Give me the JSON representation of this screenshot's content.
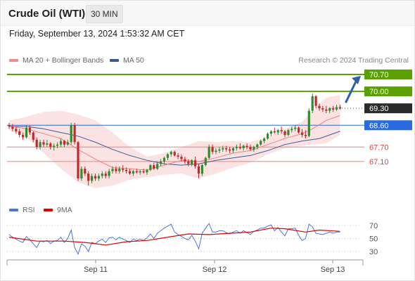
{
  "header": {
    "instrument": "Crude Oil (WTI)",
    "interval": "30 MIN"
  },
  "timestamp": "Friday, September 13, 2024 1:53:32 AM CET",
  "credit": "Research © 2024 Trading Central",
  "legend": {
    "price": [
      {
        "label": "MA 20 + Bollinger Bands",
        "color": "#f28b82"
      },
      {
        "label": "MA 50",
        "color": "#3b5998"
      }
    ],
    "rsi": [
      {
        "label": "RSI",
        "color": "#4a76d6"
      },
      {
        "label": "9MA",
        "color": "#e00000"
      }
    ]
  },
  "chart_data": [
    {
      "type": "candlestick",
      "ylim": [
        66.0,
        71.1
      ],
      "x_ticks": [
        "Sep 11",
        "Sep 12",
        "Sep 13"
      ],
      "levels": [
        {
          "value": 70.7,
          "label": "70.70",
          "color": "#5aa000",
          "style": "filled"
        },
        {
          "value": 70.0,
          "label": "70.00",
          "color": "#5aa000",
          "style": "filled"
        },
        {
          "value": 69.3,
          "label": "69.30",
          "color": "#2a2a2a",
          "style": "filled"
        },
        {
          "value": 68.6,
          "label": "68.60",
          "color": "#2a6ae0",
          "style": "filled"
        },
        {
          "value": 67.7,
          "label": "67.70",
          "color": "#e04040",
          "style": "text"
        },
        {
          "value": 67.1,
          "label": "67.10",
          "color": "#e04040",
          "style": "text"
        }
      ],
      "ohlc": [
        [
          68.6,
          68.7,
          68.45,
          68.55
        ],
        [
          68.55,
          68.65,
          68.35,
          68.45
        ],
        [
          68.45,
          68.55,
          68.25,
          68.35
        ],
        [
          68.35,
          68.45,
          68.1,
          68.2
        ],
        [
          68.2,
          68.3,
          68.0,
          68.1
        ],
        [
          68.1,
          68.6,
          68.05,
          68.5
        ],
        [
          68.5,
          68.6,
          68.2,
          68.3
        ],
        [
          68.3,
          68.35,
          67.9,
          68.0
        ],
        [
          68.0,
          68.1,
          67.6,
          67.7
        ],
        [
          67.7,
          68.0,
          67.6,
          67.9
        ],
        [
          67.9,
          68.0,
          67.7,
          67.8
        ],
        [
          67.8,
          68.0,
          67.7,
          67.85
        ],
        [
          67.85,
          67.9,
          67.6,
          67.7
        ],
        [
          67.7,
          67.85,
          67.55,
          67.75
        ],
        [
          67.75,
          67.9,
          67.65,
          67.8
        ],
        [
          67.8,
          68.05,
          67.7,
          67.95
        ],
        [
          67.95,
          68.0,
          67.7,
          67.8
        ],
        [
          67.8,
          68.0,
          67.75,
          67.9
        ],
        [
          67.9,
          68.7,
          67.8,
          68.6
        ],
        [
          68.6,
          68.7,
          67.8,
          67.9
        ],
        [
          67.9,
          67.95,
          66.3,
          66.4
        ],
        [
          66.4,
          66.9,
          66.3,
          66.8
        ],
        [
          66.8,
          66.9,
          66.5,
          66.6
        ],
        [
          66.6,
          66.7,
          66.1,
          66.3
        ],
        [
          66.3,
          66.6,
          66.2,
          66.5
        ],
        [
          66.5,
          66.6,
          66.3,
          66.4
        ],
        [
          66.4,
          66.6,
          66.3,
          66.5
        ],
        [
          66.5,
          66.7,
          66.4,
          66.6
        ],
        [
          66.6,
          66.7,
          66.4,
          66.5
        ],
        [
          66.5,
          66.8,
          66.4,
          66.7
        ],
        [
          66.7,
          66.9,
          66.6,
          66.8
        ],
        [
          66.8,
          66.9,
          66.6,
          66.7
        ],
        [
          66.7,
          66.9,
          66.6,
          66.8
        ],
        [
          66.8,
          66.95,
          66.65,
          66.75
        ],
        [
          66.75,
          66.85,
          66.6,
          66.7
        ],
        [
          66.7,
          66.8,
          66.55,
          66.6
        ],
        [
          66.6,
          66.75,
          66.5,
          66.7
        ],
        [
          66.7,
          66.8,
          66.6,
          66.65
        ],
        [
          66.65,
          66.75,
          66.55,
          66.7
        ],
        [
          66.7,
          66.8,
          66.6,
          66.65
        ],
        [
          66.65,
          66.8,
          66.55,
          66.75
        ],
        [
          66.75,
          67.0,
          66.7,
          66.95
        ],
        [
          66.95,
          67.05,
          66.75,
          66.8
        ],
        [
          66.8,
          67.1,
          66.75,
          67.0
        ],
        [
          67.0,
          67.2,
          66.9,
          67.1
        ],
        [
          67.1,
          67.3,
          67.0,
          67.25
        ],
        [
          67.25,
          67.45,
          67.15,
          67.4
        ],
        [
          67.4,
          67.55,
          67.3,
          67.5
        ],
        [
          67.5,
          67.55,
          67.3,
          67.35
        ],
        [
          67.35,
          67.45,
          67.2,
          67.3
        ],
        [
          67.3,
          67.4,
          67.1,
          67.2
        ],
        [
          67.2,
          67.3,
          67.0,
          67.1
        ],
        [
          67.1,
          67.2,
          66.9,
          67.0
        ],
        [
          67.0,
          67.2,
          66.9,
          67.15
        ],
        [
          67.15,
          67.3,
          66.8,
          66.9
        ],
        [
          66.9,
          67.0,
          66.4,
          66.6
        ],
        [
          66.6,
          67.0,
          66.5,
          66.95
        ],
        [
          66.95,
          67.3,
          66.9,
          67.25
        ],
        [
          67.25,
          67.8,
          67.2,
          67.7
        ],
        [
          67.7,
          67.8,
          67.4,
          67.5
        ],
        [
          67.5,
          67.65,
          67.4,
          67.55
        ],
        [
          67.55,
          67.7,
          67.45,
          67.6
        ],
        [
          67.6,
          67.75,
          67.5,
          67.65
        ],
        [
          67.65,
          67.75,
          67.5,
          67.6
        ],
        [
          67.6,
          67.7,
          67.45,
          67.55
        ],
        [
          67.55,
          67.7,
          67.45,
          67.65
        ],
        [
          67.65,
          67.8,
          67.55,
          67.7
        ],
        [
          67.7,
          67.85,
          67.6,
          67.65
        ],
        [
          67.65,
          67.8,
          67.55,
          67.75
        ],
        [
          67.75,
          67.85,
          67.6,
          67.7
        ],
        [
          67.7,
          67.8,
          67.55,
          67.6
        ],
        [
          67.6,
          67.75,
          67.5,
          67.7
        ],
        [
          67.7,
          67.85,
          67.6,
          67.8
        ],
        [
          67.8,
          68.0,
          67.75,
          67.95
        ],
        [
          67.95,
          68.1,
          67.85,
          68.05
        ],
        [
          68.05,
          68.3,
          68.0,
          68.25
        ],
        [
          68.25,
          68.4,
          68.15,
          68.35
        ],
        [
          68.35,
          68.5,
          68.25,
          68.3
        ],
        [
          68.3,
          68.45,
          68.2,
          68.4
        ],
        [
          68.4,
          68.55,
          68.25,
          68.35
        ],
        [
          68.35,
          68.4,
          68.1,
          68.2
        ],
        [
          68.2,
          68.45,
          68.15,
          68.4
        ],
        [
          68.4,
          68.55,
          68.3,
          68.45
        ],
        [
          68.45,
          68.6,
          68.35,
          68.5
        ],
        [
          68.5,
          68.55,
          68.25,
          68.3
        ],
        [
          68.3,
          68.45,
          68.1,
          68.2
        ],
        [
          68.2,
          68.4,
          68.05,
          68.15
        ],
        [
          68.15,
          69.3,
          68.1,
          69.2
        ],
        [
          69.2,
          69.9,
          69.1,
          69.8
        ],
        [
          69.8,
          69.85,
          69.3,
          69.4
        ],
        [
          69.4,
          69.5,
          69.2,
          69.3
        ],
        [
          69.3,
          69.4,
          69.15,
          69.25
        ],
        [
          69.25,
          69.4,
          69.1,
          69.2
        ],
        [
          69.2,
          69.35,
          69.1,
          69.3
        ],
        [
          69.3,
          69.4,
          69.15,
          69.25
        ],
        [
          69.25,
          69.45,
          69.2,
          69.35
        ],
        [
          69.35,
          69.45,
          69.25,
          69.3
        ]
      ],
      "ma20": [
        [
          0,
          68.58
        ],
        [
          5,
          68.45
        ],
        [
          10,
          68.25
        ],
        [
          15,
          68.05
        ],
        [
          20,
          67.6
        ],
        [
          25,
          67.2
        ],
        [
          30,
          66.85
        ],
        [
          35,
          66.8
        ],
        [
          40,
          66.75
        ],
        [
          45,
          66.95
        ],
        [
          50,
          67.15
        ],
        [
          55,
          67.1
        ],
        [
          60,
          67.25
        ],
        [
          65,
          67.45
        ],
        [
          70,
          67.55
        ],
        [
          75,
          67.8
        ],
        [
          80,
          68.05
        ],
        [
          85,
          68.25
        ],
        [
          88,
          68.45
        ],
        [
          92,
          68.8
        ],
        [
          96,
          69.0
        ]
      ],
      "ma50": [
        [
          0,
          68.55
        ],
        [
          5,
          68.55
        ],
        [
          10,
          68.45
        ],
        [
          15,
          68.3
        ],
        [
          20,
          68.15
        ],
        [
          25,
          67.9
        ],
        [
          30,
          67.6
        ],
        [
          35,
          67.35
        ],
        [
          40,
          67.15
        ],
        [
          45,
          67.0
        ],
        [
          50,
          66.95
        ],
        [
          55,
          67.0
        ],
        [
          60,
          67.15
        ],
        [
          65,
          67.25
        ],
        [
          70,
          67.35
        ],
        [
          75,
          67.55
        ],
        [
          80,
          67.8
        ],
        [
          85,
          67.95
        ],
        [
          90,
          68.05
        ],
        [
          96,
          68.35
        ]
      ],
      "bollinger": {
        "upper": [
          [
            0,
            68.8
          ],
          [
            5,
            68.95
          ],
          [
            10,
            69.15
          ],
          [
            15,
            69.2
          ],
          [
            20,
            69.05
          ],
          [
            25,
            68.8
          ],
          [
            30,
            68.3
          ],
          [
            35,
            67.7
          ],
          [
            40,
            67.3
          ],
          [
            45,
            67.45
          ],
          [
            50,
            67.7
          ],
          [
            55,
            67.95
          ],
          [
            60,
            67.9
          ],
          [
            65,
            67.95
          ],
          [
            70,
            67.9
          ],
          [
            75,
            68.1
          ],
          [
            80,
            68.45
          ],
          [
            85,
            68.75
          ],
          [
            88,
            69.2
          ],
          [
            92,
            69.75
          ],
          [
            96,
            69.85
          ]
        ],
        "lower": [
          [
            0,
            68.4
          ],
          [
            5,
            68.1
          ],
          [
            10,
            67.45
          ],
          [
            15,
            66.8
          ],
          [
            20,
            66.25
          ],
          [
            25,
            66.0
          ],
          [
            30,
            66.1
          ],
          [
            35,
            66.35
          ],
          [
            40,
            66.45
          ],
          [
            45,
            66.55
          ],
          [
            50,
            66.6
          ],
          [
            55,
            66.4
          ],
          [
            60,
            66.6
          ],
          [
            65,
            66.85
          ],
          [
            70,
            67.05
          ],
          [
            75,
            67.4
          ],
          [
            80,
            67.65
          ],
          [
            85,
            67.75
          ],
          [
            88,
            67.8
          ],
          [
            92,
            67.85
          ],
          [
            96,
            68.2
          ]
        ]
      },
      "forecast_arrow": {
        "from": [
          96,
          69.3
        ],
        "to": [
          101,
          70.7
        ]
      }
    },
    {
      "type": "line",
      "panel": "RSI",
      "ylim": [
        20,
        80
      ],
      "y_ticks": [
        70,
        50,
        30
      ],
      "rsi": [
        56,
        52,
        49,
        46,
        44,
        53,
        48,
        42,
        36,
        46,
        45,
        47,
        42,
        46,
        47,
        52,
        44,
        50,
        63,
        36,
        26,
        42,
        38,
        30,
        44,
        42,
        46,
        49,
        44,
        51,
        52,
        48,
        52,
        49,
        47,
        44,
        49,
        47,
        49,
        47,
        51,
        57,
        50,
        58,
        62,
        66,
        69,
        72,
        60,
        56,
        53,
        50,
        48,
        55,
        46,
        34,
        58,
        66,
        73,
        60,
        60,
        62,
        62,
        59,
        57,
        60,
        62,
        58,
        62,
        59,
        56,
        61,
        63,
        66,
        66,
        69,
        71,
        62,
        67,
        60,
        54,
        65,
        65,
        66,
        55,
        47,
        50,
        72,
        68,
        58,
        57,
        56,
        58,
        60,
        58,
        60,
        60
      ],
      "ma9": [
        [
          0,
          52
        ],
        [
          8,
          46
        ],
        [
          16,
          46
        ],
        [
          22,
          44
        ],
        [
          28,
          40
        ],
        [
          34,
          45
        ],
        [
          40,
          47
        ],
        [
          46,
          52
        ],
        [
          52,
          57
        ],
        [
          58,
          56
        ],
        [
          64,
          58
        ],
        [
          70,
          60
        ],
        [
          76,
          66
        ],
        [
          80,
          65
        ],
        [
          86,
          60
        ],
        [
          90,
          63
        ],
        [
          96,
          61
        ]
      ]
    }
  ]
}
